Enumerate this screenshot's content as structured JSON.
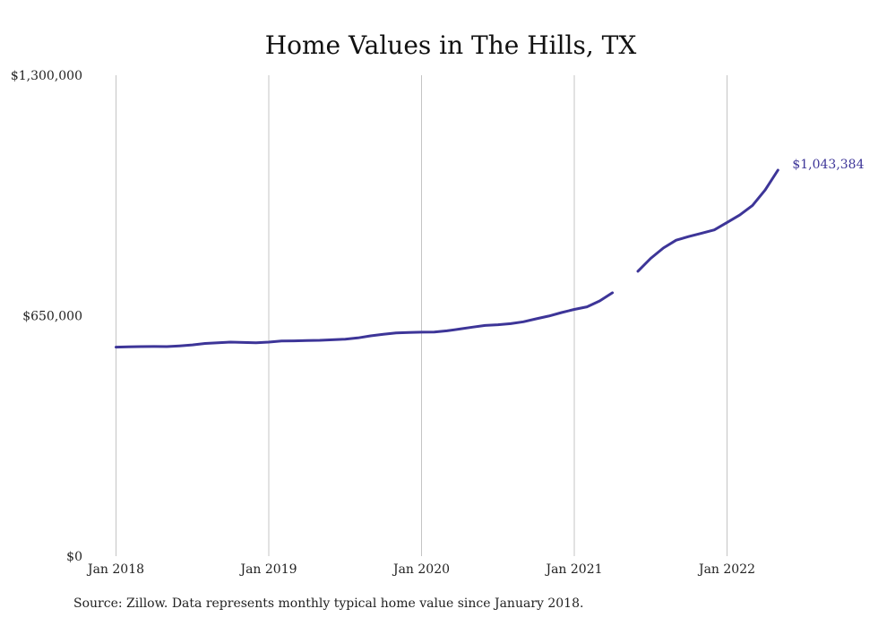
{
  "chart_data": {
    "type": "line",
    "title": "Home Values in The Hills, TX",
    "xlabel": "",
    "ylabel": "",
    "ylim": [
      0,
      1300000
    ],
    "yticks": [
      {
        "value": 0,
        "label": "$0"
      },
      {
        "value": 650000,
        "label": "$650,000"
      },
      {
        "value": 1300000,
        "label": "$1,300,000"
      }
    ],
    "xticks": [
      {
        "date": "2018-01",
        "label": "Jan 2018"
      },
      {
        "date": "2019-01",
        "label": "Jan 2019"
      },
      {
        "date": "2020-01",
        "label": "Jan 2020"
      },
      {
        "date": "2021-01",
        "label": "Jan 2021"
      },
      {
        "date": "2022-01",
        "label": "Jan 2022"
      }
    ],
    "xrange": [
      "2018-01",
      "2022-05"
    ],
    "grid": {
      "vertical": true,
      "horizontal": false
    },
    "series": [
      {
        "color": "#3d3598",
        "segments": [
          [
            {
              "date": "2018-01",
              "value": 565000
            },
            {
              "date": "2018-02",
              "value": 566000
            },
            {
              "date": "2018-03",
              "value": 566500
            },
            {
              "date": "2018-04",
              "value": 566800
            },
            {
              "date": "2018-05",
              "value": 566500
            },
            {
              "date": "2018-06",
              "value": 568500
            },
            {
              "date": "2018-07",
              "value": 571000
            },
            {
              "date": "2018-08",
              "value": 575000
            },
            {
              "date": "2018-09",
              "value": 577000
            },
            {
              "date": "2018-10",
              "value": 578500
            },
            {
              "date": "2018-11",
              "value": 577500
            },
            {
              "date": "2018-12",
              "value": 577000
            },
            {
              "date": "2019-01",
              "value": 578500
            },
            {
              "date": "2019-02",
              "value": 581500
            },
            {
              "date": "2019-03",
              "value": 582000
            },
            {
              "date": "2019-04",
              "value": 583000
            },
            {
              "date": "2019-05",
              "value": 583500
            },
            {
              "date": "2019-06",
              "value": 585000
            },
            {
              "date": "2019-07",
              "value": 586500
            },
            {
              "date": "2019-08",
              "value": 590000
            },
            {
              "date": "2019-09",
              "value": 595500
            },
            {
              "date": "2019-10",
              "value": 600000
            },
            {
              "date": "2019-11",
              "value": 603500
            },
            {
              "date": "2019-12",
              "value": 604500
            },
            {
              "date": "2020-01",
              "value": 605500
            },
            {
              "date": "2020-02",
              "value": 606000
            },
            {
              "date": "2020-03",
              "value": 609000
            },
            {
              "date": "2020-04",
              "value": 614000
            },
            {
              "date": "2020-05",
              "value": 619000
            },
            {
              "date": "2020-06",
              "value": 623500
            },
            {
              "date": "2020-07",
              "value": 625500
            },
            {
              "date": "2020-08",
              "value": 628500
            },
            {
              "date": "2020-09",
              "value": 633500
            },
            {
              "date": "2020-10",
              "value": 641500
            },
            {
              "date": "2020-11",
              "value": 649000
            },
            {
              "date": "2020-12",
              "value": 658500
            },
            {
              "date": "2021-01",
              "value": 667000
            },
            {
              "date": "2021-02",
              "value": 674000
            },
            {
              "date": "2021-03",
              "value": 690000
            },
            {
              "date": "2021-04",
              "value": 712000
            }
          ],
          [
            {
              "date": "2021-06",
              "value": 770000
            },
            {
              "date": "2021-07",
              "value": 805000
            },
            {
              "date": "2021-08",
              "value": 833000
            },
            {
              "date": "2021-09",
              "value": 854000
            },
            {
              "date": "2021-10",
              "value": 864000
            },
            {
              "date": "2021-11",
              "value": 873000
            },
            {
              "date": "2021-12",
              "value": 882000
            },
            {
              "date": "2022-01",
              "value": 902000
            },
            {
              "date": "2022-02",
              "value": 922000
            },
            {
              "date": "2022-03",
              "value": 948000
            },
            {
              "date": "2022-04",
              "value": 990000
            },
            {
              "date": "2022-05",
              "value": 1043384
            }
          ]
        ]
      }
    ],
    "annotations": [
      {
        "date": "2022-05",
        "value": 1043384,
        "label": "$1,043,384",
        "color": "#3d3598"
      }
    ]
  },
  "source_note": "Source: Zillow. Data represents monthly typical home value since January 2018."
}
